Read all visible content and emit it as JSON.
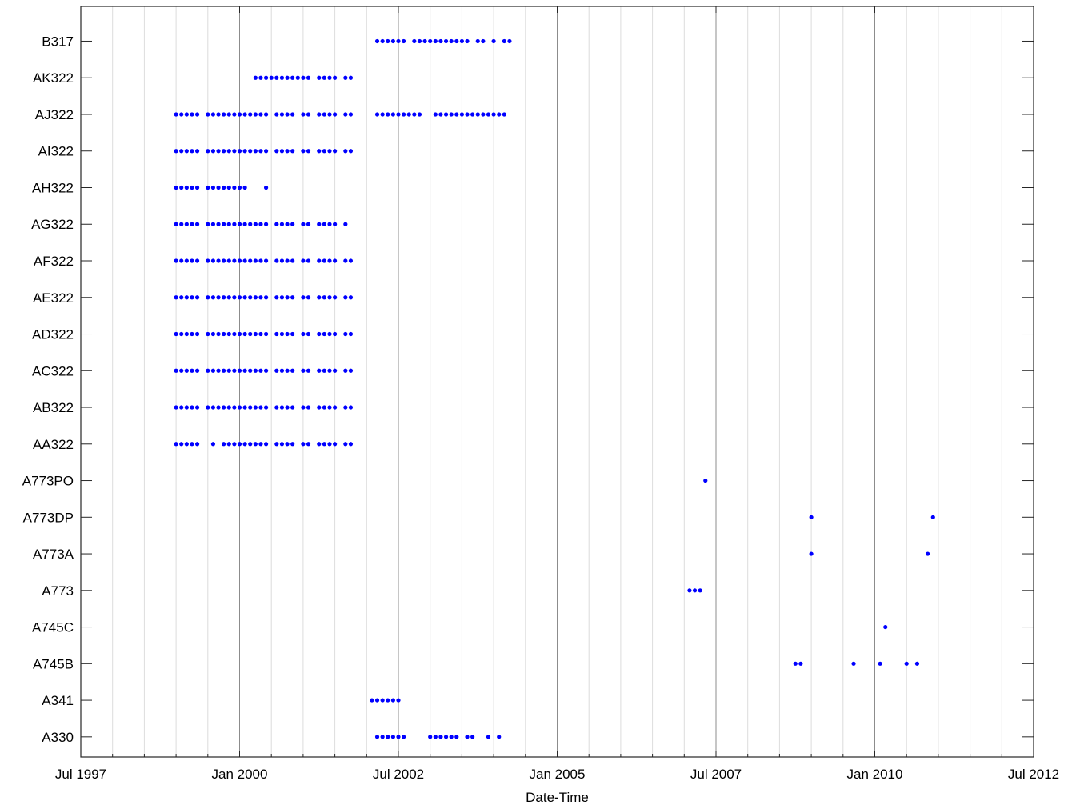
{
  "chart_data": {
    "type": "scatter",
    "title": "",
    "xlabel": "Date-Time",
    "ylabel": "",
    "x_range": [
      "1997-07",
      "2012-07"
    ],
    "x_ticks": [
      "Jul 1997",
      "Jan 2000",
      "Jul 2002",
      "Jan 2005",
      "Jul 2007",
      "Jan 2010",
      "Jul 2012"
    ],
    "x_tick_dates": [
      "1997-07",
      "2000-01",
      "2002-07",
      "2005-01",
      "2007-07",
      "2010-01",
      "2012-07"
    ],
    "categories": [
      "A330",
      "A341",
      "A745B",
      "A745C",
      "A773",
      "A773A",
      "A773DP",
      "A773PO",
      "AA322",
      "AB322",
      "AC322",
      "AD322",
      "AE322",
      "AF322",
      "AG322",
      "AH322",
      "AI322",
      "AJ322",
      "AK322",
      "B317"
    ],
    "grid": true,
    "marker_color": "#0000ff",
    "series": [
      {
        "category": "A330",
        "dates": [
          "2002-03",
          "2002-04",
          "2002-05",
          "2002-06",
          "2002-07",
          "2002-08",
          "2003-01",
          "2003-02",
          "2003-03",
          "2003-04",
          "2003-05",
          "2003-06",
          "2003-08",
          "2003-09",
          "2003-12",
          "2004-02"
        ]
      },
      {
        "category": "A341",
        "dates": [
          "2002-02",
          "2002-03",
          "2002-04",
          "2002-05",
          "2002-06",
          "2002-07"
        ]
      },
      {
        "category": "A745B",
        "dates": [
          "2008-10",
          "2008-11",
          "2009-09",
          "2010-02",
          "2010-07",
          "2010-09"
        ]
      },
      {
        "category": "A745C",
        "dates": [
          "2010-03"
        ]
      },
      {
        "category": "A773",
        "dates": [
          "2007-02",
          "2007-03",
          "2007-04"
        ]
      },
      {
        "category": "A773A",
        "dates": [
          "2009-01",
          "2010-11"
        ]
      },
      {
        "category": "A773DP",
        "dates": [
          "2009-01",
          "2010-12"
        ]
      },
      {
        "category": "A773PO",
        "dates": [
          "2007-05"
        ]
      },
      {
        "category": "AA322",
        "dates": [
          "1999-01",
          "1999-02",
          "1999-03",
          "1999-04",
          "1999-05",
          "1999-08",
          "1999-10",
          "1999-11",
          "1999-12",
          "2000-01",
          "2000-02",
          "2000-03",
          "2000-04",
          "2000-05",
          "2000-06",
          "2000-08",
          "2000-09",
          "2000-10",
          "2000-11",
          "2001-01",
          "2001-02",
          "2001-04",
          "2001-05",
          "2001-06",
          "2001-07",
          "2001-09",
          "2001-10"
        ]
      },
      {
        "category": "AB322",
        "dates": [
          "1999-01",
          "1999-02",
          "1999-03",
          "1999-04",
          "1999-05",
          "1999-07",
          "1999-08",
          "1999-09",
          "1999-10",
          "1999-11",
          "1999-12",
          "2000-01",
          "2000-02",
          "2000-03",
          "2000-04",
          "2000-05",
          "2000-06",
          "2000-08",
          "2000-09",
          "2000-10",
          "2000-11",
          "2001-01",
          "2001-02",
          "2001-04",
          "2001-05",
          "2001-06",
          "2001-07",
          "2001-09",
          "2001-10"
        ]
      },
      {
        "category": "AC322",
        "dates": [
          "1999-01",
          "1999-02",
          "1999-03",
          "1999-04",
          "1999-05",
          "1999-07",
          "1999-08",
          "1999-09",
          "1999-10",
          "1999-11",
          "1999-12",
          "2000-01",
          "2000-02",
          "2000-03",
          "2000-04",
          "2000-05",
          "2000-06",
          "2000-08",
          "2000-09",
          "2000-10",
          "2000-11",
          "2001-01",
          "2001-02",
          "2001-04",
          "2001-05",
          "2001-06",
          "2001-07",
          "2001-09",
          "2001-10"
        ]
      },
      {
        "category": "AD322",
        "dates": [
          "1999-01",
          "1999-02",
          "1999-03",
          "1999-04",
          "1999-05",
          "1999-07",
          "1999-08",
          "1999-09",
          "1999-10",
          "1999-11",
          "1999-12",
          "2000-01",
          "2000-02",
          "2000-03",
          "2000-04",
          "2000-05",
          "2000-06",
          "2000-08",
          "2000-09",
          "2000-10",
          "2000-11",
          "2001-01",
          "2001-02",
          "2001-04",
          "2001-05",
          "2001-06",
          "2001-07",
          "2001-09",
          "2001-10"
        ]
      },
      {
        "category": "AE322",
        "dates": [
          "1999-01",
          "1999-02",
          "1999-03",
          "1999-04",
          "1999-05",
          "1999-07",
          "1999-08",
          "1999-09",
          "1999-10",
          "1999-11",
          "1999-12",
          "2000-01",
          "2000-02",
          "2000-03",
          "2000-04",
          "2000-05",
          "2000-06",
          "2000-08",
          "2000-09",
          "2000-10",
          "2000-11",
          "2001-01",
          "2001-02",
          "2001-04",
          "2001-05",
          "2001-06",
          "2001-07",
          "2001-09",
          "2001-10"
        ]
      },
      {
        "category": "AF322",
        "dates": [
          "1999-01",
          "1999-02",
          "1999-03",
          "1999-04",
          "1999-05",
          "1999-07",
          "1999-08",
          "1999-09",
          "1999-10",
          "1999-11",
          "1999-12",
          "2000-01",
          "2000-02",
          "2000-03",
          "2000-04",
          "2000-05",
          "2000-06",
          "2000-08",
          "2000-09",
          "2000-10",
          "2000-11",
          "2001-01",
          "2001-02",
          "2001-04",
          "2001-05",
          "2001-06",
          "2001-07",
          "2001-09",
          "2001-10"
        ]
      },
      {
        "category": "AG322",
        "dates": [
          "1999-01",
          "1999-02",
          "1999-03",
          "1999-04",
          "1999-05",
          "1999-07",
          "1999-08",
          "1999-09",
          "1999-10",
          "1999-11",
          "1999-12",
          "2000-01",
          "2000-02",
          "2000-03",
          "2000-04",
          "2000-05",
          "2000-06",
          "2000-08",
          "2000-09",
          "2000-10",
          "2000-11",
          "2001-01",
          "2001-02",
          "2001-04",
          "2001-05",
          "2001-06",
          "2001-07",
          "2001-09"
        ]
      },
      {
        "category": "AH322",
        "dates": [
          "1999-01",
          "1999-02",
          "1999-03",
          "1999-04",
          "1999-05",
          "1999-07",
          "1999-08",
          "1999-09",
          "1999-10",
          "1999-11",
          "1999-12",
          "2000-01",
          "2000-02",
          "2000-06"
        ]
      },
      {
        "category": "AI322",
        "dates": [
          "1999-01",
          "1999-02",
          "1999-03",
          "1999-04",
          "1999-05",
          "1999-07",
          "1999-08",
          "1999-09",
          "1999-10",
          "1999-11",
          "1999-12",
          "2000-01",
          "2000-02",
          "2000-03",
          "2000-04",
          "2000-05",
          "2000-06",
          "2000-08",
          "2000-09",
          "2000-10",
          "2000-11",
          "2001-01",
          "2001-02",
          "2001-04",
          "2001-05",
          "2001-06",
          "2001-07",
          "2001-09",
          "2001-10"
        ]
      },
      {
        "category": "AJ322",
        "dates": [
          "1999-01",
          "1999-02",
          "1999-03",
          "1999-04",
          "1999-05",
          "1999-07",
          "1999-08",
          "1999-09",
          "1999-10",
          "1999-11",
          "1999-12",
          "2000-01",
          "2000-02",
          "2000-03",
          "2000-04",
          "2000-05",
          "2000-06",
          "2000-08",
          "2000-09",
          "2000-10",
          "2000-11",
          "2001-01",
          "2001-02",
          "2001-04",
          "2001-05",
          "2001-06",
          "2001-07",
          "2001-09",
          "2001-10",
          "2002-03",
          "2002-04",
          "2002-05",
          "2002-06",
          "2002-07",
          "2002-08",
          "2002-09",
          "2002-10",
          "2002-11",
          "2003-02",
          "2003-03",
          "2003-04",
          "2003-05",
          "2003-06",
          "2003-07",
          "2003-08",
          "2003-09",
          "2003-10",
          "2003-11",
          "2003-12",
          "2004-01",
          "2004-02",
          "2004-03"
        ]
      },
      {
        "category": "AK322",
        "dates": [
          "2000-04",
          "2000-05",
          "2000-06",
          "2000-07",
          "2000-08",
          "2000-09",
          "2000-10",
          "2000-11",
          "2000-12",
          "2001-01",
          "2001-02",
          "2001-04",
          "2001-05",
          "2001-06",
          "2001-07",
          "2001-09",
          "2001-10"
        ]
      },
      {
        "category": "B317",
        "dates": [
          "2002-03",
          "2002-04",
          "2002-05",
          "2002-06",
          "2002-07",
          "2002-08",
          "2002-10",
          "2002-11",
          "2002-12",
          "2003-01",
          "2003-02",
          "2003-03",
          "2003-04",
          "2003-05",
          "2003-06",
          "2003-07",
          "2003-08",
          "2003-10",
          "2003-11",
          "2004-01",
          "2004-03",
          "2004-04"
        ]
      }
    ]
  }
}
